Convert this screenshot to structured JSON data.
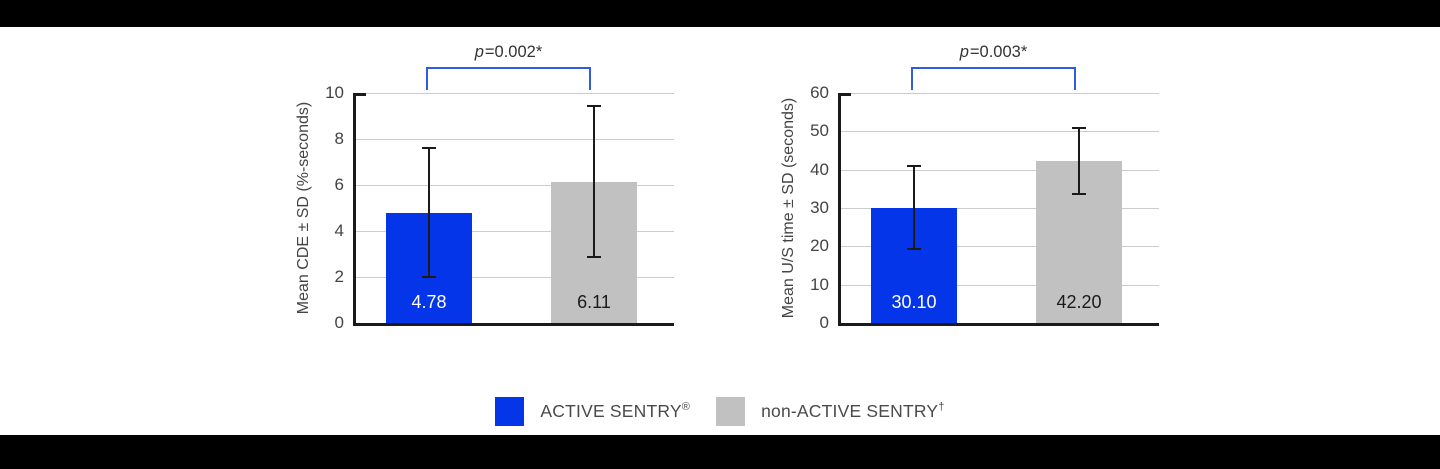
{
  "page": {
    "background": "#ffffff",
    "top_bar_color": "#000000",
    "bottom_bar_color": "#000000"
  },
  "colors": {
    "active_sentry_blue": "#0535e8",
    "non_active_gray": "#c1c1c1",
    "bracket_blue": "#2f5ce2",
    "axis_black": "#1a1a1a",
    "gridline_gray": "#cccccc",
    "axis_text_gray": "#444444",
    "legend_text_gray": "#4a4a4a"
  },
  "legend": {
    "items": [
      {
        "label": "ACTIVE SENTRY",
        "sup": "®",
        "color": "#0535e8"
      },
      {
        "label": "non-ACTIVE SENTRY",
        "sup": "†",
        "color": "#c1c1c1"
      }
    ]
  },
  "chart_data": [
    {
      "type": "bar",
      "title": "",
      "p_label": "p=0.002*",
      "ylabel": "Mean CDE ± SD (%-seconds)",
      "xlabel": "",
      "ylim": [
        0,
        10
      ],
      "yticks": [
        0,
        2,
        4,
        6,
        8,
        10
      ],
      "grid": true,
      "categories": [
        "ACTIVE SENTRY®",
        "non-ACTIVE SENTRY†"
      ],
      "series": [
        {
          "name": "ACTIVE SENTRY®",
          "value": 4.78,
          "value_label": "4.78",
          "error_low": 1.95,
          "error_high": 7.65,
          "color": "#0535e8",
          "label_color": "#ffffff"
        },
        {
          "name": "non-ACTIVE SENTRY†",
          "value": 6.11,
          "value_label": "6.11",
          "error_low": 2.83,
          "error_high": 9.48,
          "color": "#c1c1c1",
          "label_color": "#1a1a1a"
        }
      ]
    },
    {
      "type": "bar",
      "title": "",
      "p_label": "p=0.003*",
      "ylabel": "Mean U/S time ± SD (seconds)",
      "xlabel": "",
      "ylim": [
        0,
        60
      ],
      "yticks": [
        0,
        10,
        20,
        30,
        40,
        50,
        60
      ],
      "grid": true,
      "categories": [
        "ACTIVE SENTRY®",
        "non-ACTIVE SENTRY†"
      ],
      "series": [
        {
          "name": "ACTIVE SENTRY®",
          "value": 30.1,
          "value_label": "30.10",
          "error_low": 19.0,
          "error_high": 41.2,
          "color": "#0535e8",
          "label_color": "#ffffff"
        },
        {
          "name": "non-ACTIVE SENTRY†",
          "value": 42.2,
          "value_label": "42.20",
          "error_low": 33.3,
          "error_high": 51.1,
          "color": "#c1c1c1",
          "label_color": "#1a1a1a"
        }
      ]
    }
  ]
}
